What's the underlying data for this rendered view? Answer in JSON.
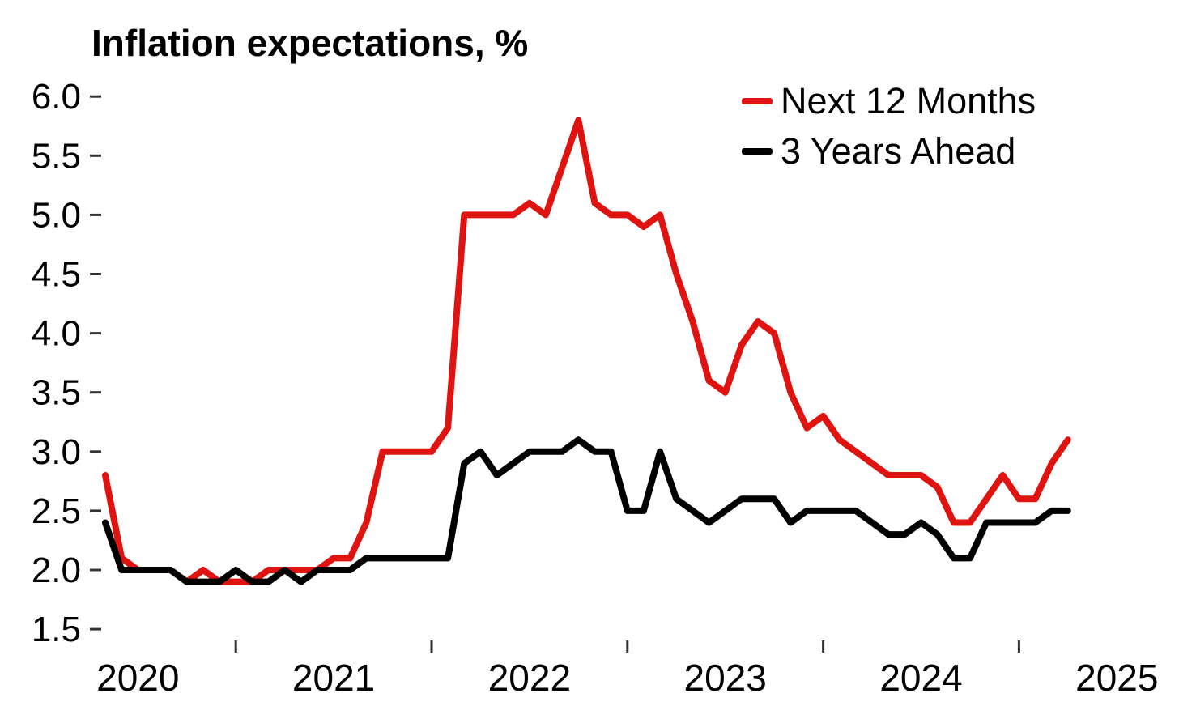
{
  "chart_data": {
    "type": "line",
    "title": "Inflation expectations, %",
    "xlabel": "",
    "ylabel": "",
    "ylim": [
      1.5,
      6.0
    ],
    "yticks": [
      1.5,
      2.0,
      2.5,
      3.0,
      3.5,
      4.0,
      4.5,
      5.0,
      5.5,
      6.0
    ],
    "grid": false,
    "legend_position": "top-right",
    "xticks": [
      {
        "label": "2020",
        "month": "2020-01"
      },
      {
        "label": "2021",
        "month": "2021-01"
      },
      {
        "label": "2022",
        "month": "2022-01"
      },
      {
        "label": "2023",
        "month": "2023-01"
      },
      {
        "label": "2024",
        "month": "2024-01"
      },
      {
        "label": "2025",
        "month": "2025-01"
      }
    ],
    "xticks_minor": [
      "2020-07",
      "2021-07",
      "2022-07",
      "2023-07",
      "2024-07"
    ],
    "x": [
      "2019-11",
      "2019-12",
      "2020-01",
      "2020-02",
      "2020-03",
      "2020-04",
      "2020-05",
      "2020-06",
      "2020-07",
      "2020-08",
      "2020-09",
      "2020-10",
      "2020-11",
      "2020-12",
      "2021-01",
      "2021-02",
      "2021-03",
      "2021-04",
      "2021-05",
      "2021-06",
      "2021-07",
      "2021-08",
      "2021-09",
      "2021-10",
      "2021-11",
      "2021-12",
      "2022-01",
      "2022-02",
      "2022-03",
      "2022-04",
      "2022-05",
      "2022-06",
      "2022-07",
      "2022-08",
      "2022-09",
      "2022-10",
      "2022-11",
      "2022-12",
      "2023-01",
      "2023-02",
      "2023-03",
      "2023-04",
      "2023-05",
      "2023-06",
      "2023-07",
      "2023-08",
      "2023-09",
      "2023-10",
      "2023-11",
      "2023-12",
      "2024-01",
      "2024-02",
      "2024-03",
      "2024-04",
      "2024-05",
      "2024-06",
      "2024-07",
      "2024-08",
      "2024-09",
      "2024-10"
    ],
    "series": [
      {
        "name": "Next 12 Months",
        "color": "#df1310",
        "values": [
          2.8,
          2.1,
          2.0,
          2.0,
          2.0,
          1.9,
          2.0,
          1.9,
          1.9,
          1.9,
          2.0,
          2.0,
          2.0,
          2.0,
          2.1,
          2.1,
          2.4,
          3.0,
          3.0,
          3.0,
          3.0,
          3.2,
          5.0,
          5.0,
          5.0,
          5.0,
          5.1,
          5.0,
          5.4,
          5.8,
          5.1,
          5.0,
          5.0,
          4.9,
          5.0,
          4.5,
          4.1,
          3.6,
          3.5,
          3.9,
          4.1,
          4.0,
          3.5,
          3.2,
          3.3,
          3.1,
          3.0,
          2.9,
          2.8,
          2.8,
          2.8,
          2.7,
          2.4,
          2.4,
          2.6,
          2.8,
          2.6,
          2.6,
          2.9,
          3.1
        ]
      },
      {
        "name": "3 Years Ahead",
        "color": "#000000",
        "values": [
          2.4,
          2.0,
          2.0,
          2.0,
          2.0,
          1.9,
          1.9,
          1.9,
          2.0,
          1.9,
          1.9,
          2.0,
          1.9,
          2.0,
          2.0,
          2.0,
          2.1,
          2.1,
          2.1,
          2.1,
          2.1,
          2.1,
          2.9,
          3.0,
          2.8,
          2.9,
          3.0,
          3.0,
          3.0,
          3.1,
          3.0,
          3.0,
          2.5,
          2.5,
          3.0,
          2.6,
          2.5,
          2.4,
          2.5,
          2.6,
          2.6,
          2.6,
          2.4,
          2.5,
          2.5,
          2.5,
          2.5,
          2.4,
          2.3,
          2.3,
          2.4,
          2.3,
          2.1,
          2.1,
          2.4,
          2.4,
          2.4,
          2.4,
          2.5,
          2.5
        ]
      }
    ]
  }
}
